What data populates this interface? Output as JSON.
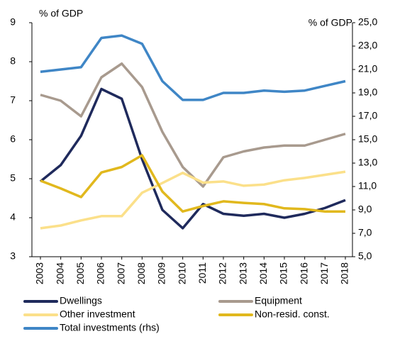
{
  "chart_data": {
    "type": "line",
    "y_label": "% of GDP",
    "y2_label": "% of GDP",
    "categories": [
      "2003",
      "2004",
      "2005",
      "2006",
      "2007",
      "2008",
      "2009",
      "2010",
      "2011",
      "2012",
      "2013",
      "2014",
      "2015",
      "2016",
      "2017",
      "2018"
    ],
    "ylim": [
      3,
      9
    ],
    "yticks": [
      3,
      4,
      5,
      6,
      7,
      8,
      9
    ],
    "y2lim": [
      5,
      25
    ],
    "y2ticks": [
      {
        "value": 5,
        "label": "5,0"
      },
      {
        "value": 7,
        "label": "7,0"
      },
      {
        "value": 9,
        "label": "9,0"
      },
      {
        "value": 11,
        "label": "11,0"
      },
      {
        "value": 13,
        "label": "13,0"
      },
      {
        "value": 15,
        "label": "15,0"
      },
      {
        "value": 17,
        "label": "17,0"
      },
      {
        "value": 19,
        "label": "19,0"
      },
      {
        "value": 21,
        "label": "21,0"
      },
      {
        "value": 23,
        "label": "23,0"
      },
      {
        "value": 25,
        "label": "25,0"
      }
    ],
    "grid": false,
    "legend": "bottom",
    "series": [
      {
        "name": "Dwellings",
        "color": "#1f2a5c",
        "values": [
          4.93,
          5.35,
          6.1,
          7.3,
          7.05,
          5.5,
          4.2,
          3.73,
          4.35,
          4.1,
          4.05,
          4.1,
          4.0,
          4.1,
          4.25,
          4.45
        ]
      },
      {
        "name": "Equipment",
        "color": "#a89a8e",
        "values": [
          7.15,
          7.0,
          6.6,
          7.6,
          7.95,
          7.35,
          6.2,
          5.3,
          4.8,
          5.55,
          5.7,
          5.8,
          5.85,
          5.85,
          6.0,
          6.15
        ]
      },
      {
        "name": "Other investment",
        "color": "#fbe08a",
        "values": [
          3.73,
          3.8,
          3.93,
          4.04,
          4.04,
          4.64,
          4.89,
          5.15,
          4.9,
          4.93,
          4.82,
          4.85,
          4.96,
          5.02,
          5.1,
          5.18
        ]
      },
      {
        "name": "Non-resid. const.",
        "color": "#e1b81d",
        "values": [
          4.95,
          4.75,
          4.53,
          5.16,
          5.3,
          5.6,
          4.67,
          4.16,
          4.3,
          4.42,
          4.38,
          4.35,
          4.24,
          4.22,
          4.16,
          4.16
        ]
      },
      {
        "name": "Total investments (rhs)",
        "color": "#3f86c6",
        "axis": "y2",
        "values": [
          20.8,
          21.0,
          21.2,
          23.7,
          23.9,
          23.2,
          20.0,
          18.4,
          18.4,
          19.0,
          19.0,
          19.2,
          19.1,
          19.2,
          19.6,
          20.0
        ]
      }
    ]
  }
}
